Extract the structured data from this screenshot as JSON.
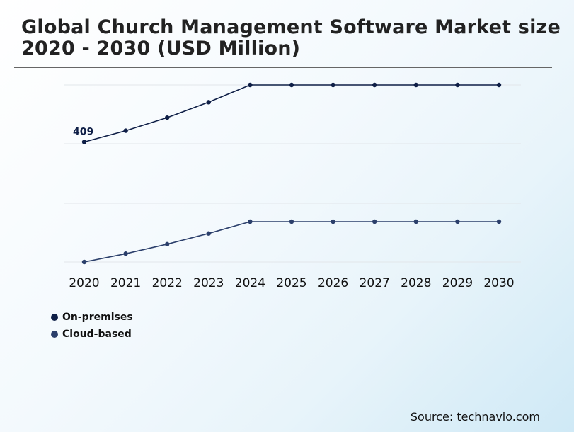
{
  "title_line1": "Global Church Management Software Market size",
  "title_line2": "2020 - 2030 (USD Million)",
  "source": "Source: technavio.com",
  "colors": {
    "on_premises": "#0f1f47",
    "cloud_based": "#2b3f6b",
    "grid": "#e2e6ea"
  },
  "chart_data": {
    "type": "line",
    "x": [
      "2020",
      "2021",
      "2022",
      "2023",
      "2024",
      "2025",
      "2026",
      "2027",
      "2028",
      "2029",
      "2030"
    ],
    "series": [
      {
        "name": "On-premises",
        "values": [
          409,
          428,
          450,
          476,
          505,
          505,
          505,
          505,
          505,
          505,
          505
        ]
      },
      {
        "name": "Cloud-based",
        "values": [
          207,
          221,
          237,
          255,
          275,
          275,
          275,
          275,
          275,
          275,
          275
        ]
      }
    ],
    "data_labels": [
      {
        "series": "On-premises",
        "x": "2020",
        "text": "409"
      }
    ],
    "ylim": [
      207,
      505
    ],
    "y_axis_labels_shown": false,
    "grid": true,
    "legend_position": "bottom-left"
  }
}
